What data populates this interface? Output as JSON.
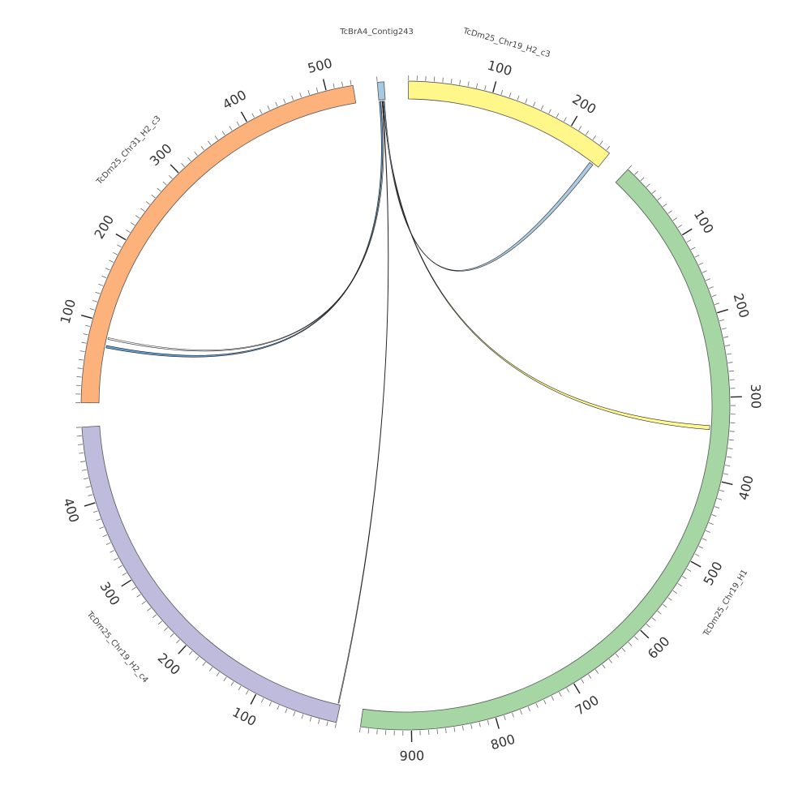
{
  "chart_data": {
    "type": "circos",
    "title": "",
    "segments": [
      {
        "name": "TcBrA4_Contig243",
        "length": 8,
        "color": "#a6c8e0",
        "ticks": []
      },
      {
        "name": "TcDm25_Chr19_H2_c3",
        "length": 255,
        "color": "#fff78a",
        "ticks": [
          "100",
          "200"
        ]
      },
      {
        "name": "TcDm25_Chr19_H1",
        "length": 960,
        "color": "#a5d6a3",
        "ticks": [
          "100",
          "200",
          "300",
          "400",
          "500",
          "600",
          "700",
          "800",
          "900"
        ]
      },
      {
        "name": "TcDm25_Chr19_H2_c4",
        "length": 490,
        "color": "#bebbdc",
        "ticks": [
          "100",
          "200",
          "300",
          "400"
        ]
      },
      {
        "name": "TcDm25_Chr31_H2_c3",
        "length": 532,
        "color": "#fdb27b",
        "ticks": [
          "100",
          "200",
          "300",
          "400",
          "500"
        ]
      }
    ],
    "links": [
      {
        "source": "TcBrA4_Contig243",
        "source_range": [
          0.5,
          2.5
        ],
        "target": "TcDm25_Chr31_H2_c3",
        "target_range": [
          69,
          72
        ],
        "color": "#5b9bd5"
      },
      {
        "source": "TcBrA4_Contig243",
        "source_range": [
          2.5,
          4.0
        ],
        "target": "TcDm25_Chr31_H2_c3",
        "target_range": [
          80,
          82
        ],
        "color": "#ffffff"
      },
      {
        "source": "TcBrA4_Contig243",
        "source_range": [
          4.0,
          4.6
        ],
        "target": "TcDm25_Chr19_H2_c4",
        "target_range": [
          2,
          3
        ],
        "color": "#ffffff"
      },
      {
        "source": "TcBrA4_Contig243",
        "source_range": [
          5.0,
          5.8
        ],
        "target": "TcDm25_Chr19_H1",
        "target_range": [
          335,
          340
        ],
        "color": "#fff78a"
      },
      {
        "source": "TcBrA4_Contig243",
        "source_range": [
          5.8,
          7.0
        ],
        "target": "TcDm25_Chr19_H2_c3",
        "target_range": [
          243,
          248
        ],
        "color": "#a6c8e0"
      }
    ]
  }
}
